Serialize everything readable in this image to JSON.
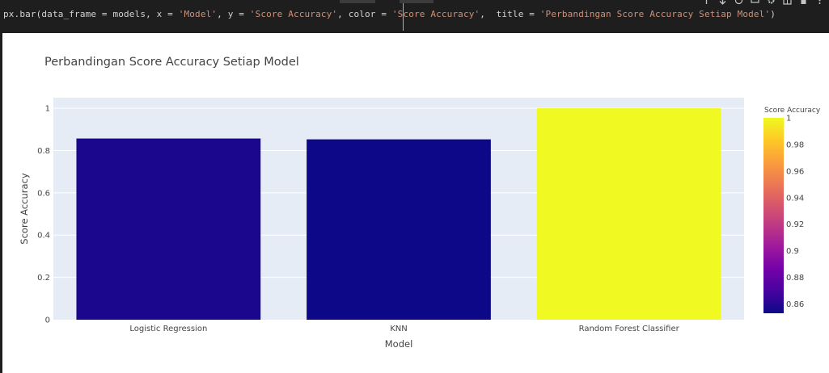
{
  "code": {
    "prefix": "px.bar(data_frame = models, x = ",
    "x_str": "'Model'",
    "mid1": ", y = ",
    "y_str": "'Score Accuracy'",
    "mid2": ", color = ",
    "color_str": "'Score Accuracy'",
    "mid3": ",  title = ",
    "title_str": "'Perbandingan Score Accuracy Setiap Model'",
    "suffix": ")"
  },
  "toolbar": {
    "icons": [
      "arrow-up-icon",
      "arrow-down-icon",
      "link-icon",
      "comment-icon",
      "gear-icon",
      "split-icon",
      "delete-icon",
      "more-icon"
    ]
  },
  "chart_data": {
    "type": "bar",
    "title": "Perbandingan Score Accuracy Setiap Model",
    "xlabel": "Model",
    "ylabel": "Score Accuracy",
    "categories": [
      "Logistic Regression",
      "KNN",
      "Random Forest Classifier"
    ],
    "values": [
      0.857,
      0.853,
      1.0
    ],
    "ylim": [
      0,
      1.05
    ],
    "yticks": [
      0,
      0.2,
      0.4,
      0.6,
      0.8,
      1
    ],
    "ytick_labels": [
      "0",
      "0.2",
      "0.4",
      "0.6",
      "0.8",
      "1"
    ],
    "grid": true,
    "plot_background": "#e5ecf6",
    "colorbar": {
      "title": "Score Accuracy",
      "range": [
        0.853,
        1.0
      ],
      "ticks": [
        0.86,
        0.88,
        0.9,
        0.92,
        0.94,
        0.96,
        0.98,
        1
      ],
      "tick_labels": [
        "0.86",
        "0.88",
        "0.9",
        "0.92",
        "0.94",
        "0.96",
        "0.98",
        "1"
      ],
      "colorscale": [
        "#0d0887",
        "#46039f",
        "#7201a8",
        "#9c179e",
        "#bd3786",
        "#d8576b",
        "#ed7953",
        "#fb9f3a",
        "#fdca26",
        "#f0f921"
      ]
    }
  }
}
